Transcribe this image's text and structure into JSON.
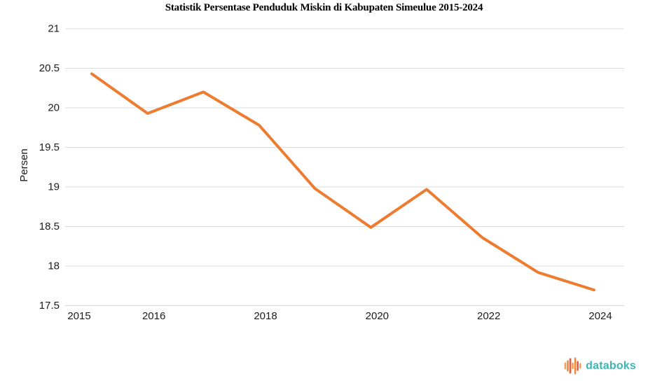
{
  "title": "Statistik Persentase Penduduk Miskin di Kabupaten Simeulue 2015-2024",
  "chart_data": {
    "type": "line",
    "x": [
      2015,
      2016,
      2017,
      2018,
      2019,
      2020,
      2021,
      2022,
      2023,
      2024
    ],
    "values": [
      20.43,
      19.93,
      20.2,
      19.78,
      18.98,
      18.49,
      18.97,
      18.36,
      17.92,
      17.7
    ],
    "title": "Statistik Persentase Penduduk Miskin di Kabupaten Simeulue 2015-2024",
    "xlabel": "",
    "ylabel": "Persen",
    "ylim": [
      17.5,
      21
    ],
    "ytick_step": 0.5,
    "xticks_shown": [
      2015,
      2016,
      2018,
      2020,
      2022,
      2024
    ],
    "grid": "horizontal",
    "legend": "none",
    "line_color": "#EE7C30",
    "gridline_color": "#DCDCDC",
    "tick_label_color": "#1c1c1c"
  },
  "branding": {
    "wordmark": "databoks",
    "wordmark_color": "#3CB5B7",
    "icon": "pulse-bars-icon",
    "icon_bars": [
      {
        "h": 10,
        "color": "#F5A154"
      },
      {
        "h": 16,
        "color": "#F08A3C"
      },
      {
        "h": 22,
        "color": "#E85D42"
      },
      {
        "h": 9,
        "color": "#F5A154"
      },
      {
        "h": 24,
        "color": "#F08A3C"
      },
      {
        "h": 14,
        "color": "#E85D42"
      },
      {
        "h": 8,
        "color": "#F5A154"
      }
    ]
  }
}
